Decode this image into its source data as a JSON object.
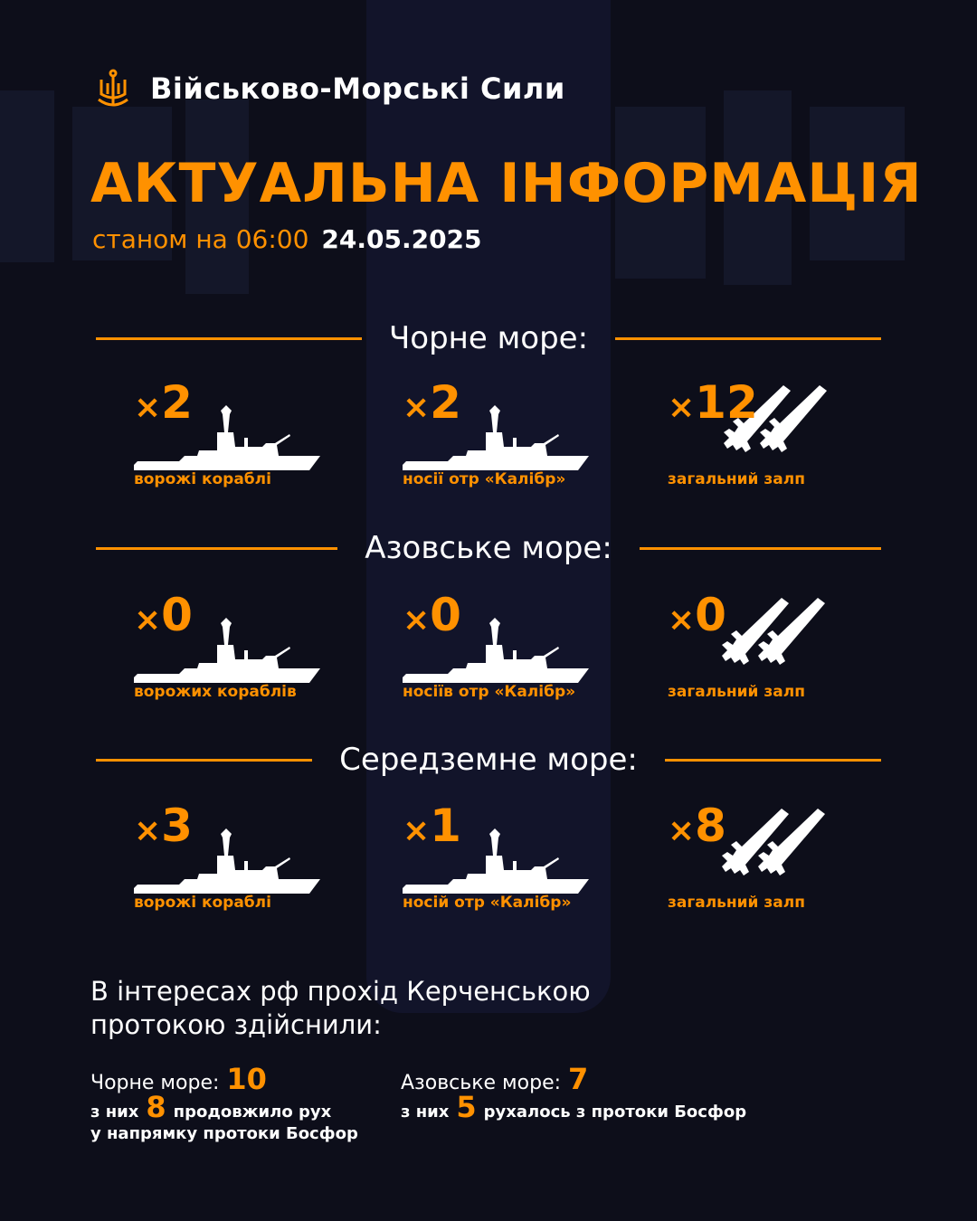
{
  "brand": {
    "name": "Військово-Морські Сили",
    "icon": "trident-anchor-icon"
  },
  "title": "АКТУАЛЬНА ІНФОРМАЦІЯ",
  "subtitle": {
    "label": "станом на 06:00",
    "date": "24.05.2025"
  },
  "colors": {
    "accent": "#ff9100",
    "background": "#0d0e1a",
    "text": "#ffffff"
  },
  "sections": [
    {
      "name": "Чорне море:",
      "items": [
        {
          "count": "2",
          "caption": "ворожі кораблі",
          "icon": "warship-icon"
        },
        {
          "count": "2",
          "caption": "носії отр «Калібр»",
          "icon": "warship-icon"
        },
        {
          "count": "12",
          "caption": "загальний залп",
          "icon": "missiles-icon"
        }
      ]
    },
    {
      "name": "Азовське море:",
      "items": [
        {
          "count": "0",
          "caption": "ворожих кораблів",
          "icon": "warship-icon"
        },
        {
          "count": "0",
          "caption": "носіїв отр «Калібр»",
          "icon": "warship-icon"
        },
        {
          "count": "0",
          "caption": "загальний залп",
          "icon": "missiles-icon"
        }
      ]
    },
    {
      "name": "Середземне море:",
      "items": [
        {
          "count": "3",
          "caption": "ворожі кораблі",
          "icon": "warship-icon"
        },
        {
          "count": "1",
          "caption": "носій отр «Калібр»",
          "icon": "warship-icon"
        },
        {
          "count": "8",
          "caption": "загальний залп",
          "icon": "missiles-icon"
        }
      ]
    }
  ],
  "multiplier": "×",
  "kerch": {
    "title_line1": "В інтересах рф прохід Керченською",
    "title_line2": "протокою здійснили:",
    "black_sea": {
      "label": "Чорне море:",
      "value": "10",
      "sub_prefix": "з них",
      "sub_value": "8",
      "sub_text1": "продовжило рух",
      "sub_text2": "у напрямку протоки Босфор"
    },
    "azov_sea": {
      "label": "Азовське море:",
      "value": "7",
      "sub_prefix": "з них",
      "sub_value": "5",
      "sub_text1": "рухалось з протоки Босфор"
    }
  }
}
